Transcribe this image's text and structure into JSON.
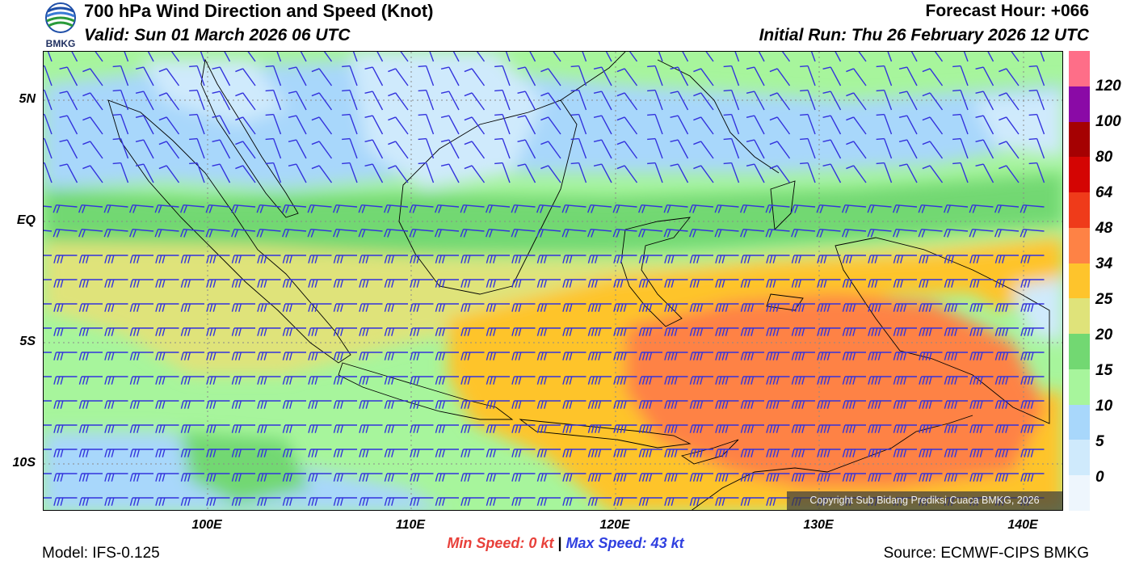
{
  "header": {
    "title": "700 hPa Wind Direction and Speed (Knot)",
    "valid": "Valid: Sun 01 March 2026 06 UTC",
    "forecast_hour": "Forecast Hour: +066",
    "initial_run": "Initial Run: Thu 26 February 2026 12 UTC",
    "logo_text": "BMKG"
  },
  "axes": {
    "lat_labels": [
      "5N",
      "EQ",
      "5S",
      "10S"
    ],
    "lon_labels": [
      "100E",
      "110E",
      "120E",
      "130E",
      "140E"
    ],
    "lon_range": [
      92,
      142
    ],
    "lat_range": [
      -11.8,
      7.0
    ]
  },
  "colorbar": {
    "labels": [
      "0",
      "5",
      "10",
      "15",
      "20",
      "25",
      "34",
      "48",
      "64",
      "80",
      "100",
      "120"
    ],
    "colors": [
      "#eef6fd",
      "#cfeafc",
      "#a8d7fb",
      "#a7f59c",
      "#72d872",
      "#dfe37a",
      "#fec42c",
      "#fe8245",
      "#ef3b1a",
      "#d40503",
      "#a50102",
      "#8a0aa6",
      "#fe6e88"
    ]
  },
  "copyright": "Copyright Sub Bidang Prediksi Cuaca BMKG, 2026",
  "speeds": {
    "min_label": "Min Speed:",
    "min_value": "0 kt",
    "separator": "|",
    "max_label": "Max Speed:",
    "max_value": "43 kt"
  },
  "footer": {
    "model": "Model: IFS-0.125",
    "source": "Source: ECMWF-CIPS BMKG"
  },
  "map_colors": {
    "barb": "#3333dd",
    "coast": "#000000",
    "grid": "#8a8a8a"
  }
}
